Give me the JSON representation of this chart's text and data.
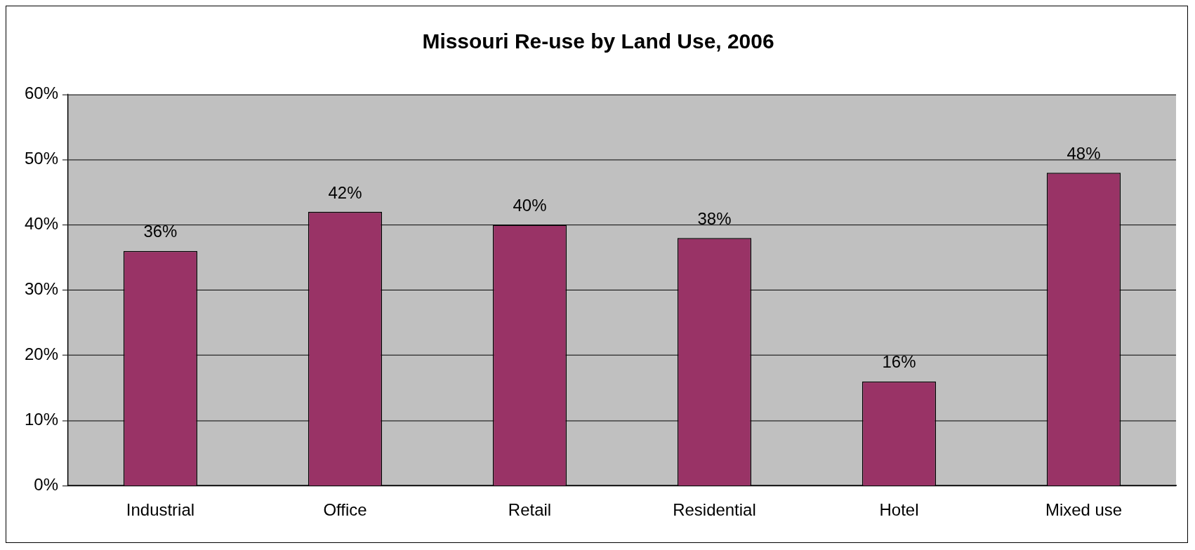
{
  "chart_data": {
    "type": "bar",
    "title": "Missouri Re-use by Land Use, 2006",
    "categories": [
      "Industrial",
      "Office",
      "Retail",
      "Residential",
      "Hotel",
      "Mixed use"
    ],
    "values": [
      36,
      42,
      40,
      38,
      16,
      48
    ],
    "value_labels": [
      "36%",
      "42%",
      "40%",
      "38%",
      "16%",
      "48%"
    ],
    "color": "#993366",
    "ylim": [
      0,
      60
    ],
    "yticks": [
      {
        "value": 0,
        "label": "0%"
      },
      {
        "value": 10,
        "label": "10%"
      },
      {
        "value": 20,
        "label": "20%"
      },
      {
        "value": 30,
        "label": "30%"
      },
      {
        "value": 40,
        "label": "40%"
      },
      {
        "value": 50,
        "label": "50%"
      },
      {
        "value": 60,
        "label": "60%"
      }
    ],
    "grid": "y",
    "legend": false
  }
}
